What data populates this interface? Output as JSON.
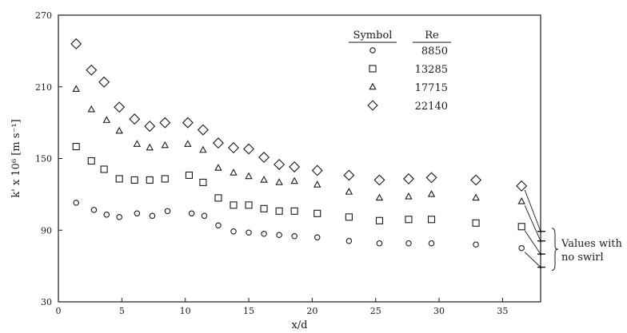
{
  "chart_data": {
    "type": "scatter",
    "title": "",
    "xlabel": "x/d",
    "ylabel": "k' x 10⁶ [m s⁻¹]",
    "xlim": [
      0,
      38
    ],
    "ylim": [
      30,
      270
    ],
    "xticks": [
      0,
      5,
      10,
      15,
      20,
      25,
      30,
      35
    ],
    "yticks": [
      30,
      90,
      150,
      210,
      270
    ],
    "grid": false,
    "legend": {
      "placement": "top-right",
      "symbol_header": "Symbol",
      "value_header": "Re"
    },
    "series": [
      {
        "name": "8850",
        "marker": "circle",
        "points": [
          [
            1.4,
            113
          ],
          [
            2.8,
            107
          ],
          [
            3.8,
            103
          ],
          [
            4.8,
            101
          ],
          [
            6.2,
            104
          ],
          [
            7.4,
            102
          ],
          [
            8.6,
            106
          ],
          [
            10.5,
            104
          ],
          [
            11.5,
            102
          ],
          [
            12.6,
            94
          ],
          [
            13.8,
            89
          ],
          [
            15.0,
            88
          ],
          [
            16.2,
            87
          ],
          [
            17.4,
            86
          ],
          [
            18.6,
            85
          ],
          [
            20.4,
            84
          ],
          [
            22.9,
            81
          ],
          [
            25.3,
            79
          ],
          [
            27.6,
            79
          ],
          [
            29.4,
            79
          ],
          [
            32.9,
            78
          ],
          [
            36.5,
            75
          ]
        ]
      },
      {
        "name": "13285",
        "marker": "square",
        "points": [
          [
            1.4,
            160
          ],
          [
            2.6,
            148
          ],
          [
            3.6,
            141
          ],
          [
            4.8,
            133
          ],
          [
            6.0,
            132
          ],
          [
            7.2,
            132
          ],
          [
            8.4,
            133
          ],
          [
            10.3,
            136
          ],
          [
            11.4,
            130
          ],
          [
            12.6,
            117
          ],
          [
            13.8,
            111
          ],
          [
            15.0,
            111
          ],
          [
            16.2,
            108
          ],
          [
            17.4,
            106
          ],
          [
            18.6,
            106
          ],
          [
            20.4,
            104
          ],
          [
            22.9,
            101
          ],
          [
            25.3,
            98
          ],
          [
            27.6,
            99
          ],
          [
            29.4,
            99
          ],
          [
            32.9,
            96
          ],
          [
            36.5,
            93
          ]
        ]
      },
      {
        "name": "17715",
        "marker": "triangle",
        "points": [
          [
            1.4,
            208
          ],
          [
            2.6,
            191
          ],
          [
            3.8,
            182
          ],
          [
            4.8,
            173
          ],
          [
            6.2,
            162
          ],
          [
            7.2,
            159
          ],
          [
            8.4,
            161
          ],
          [
            10.2,
            162
          ],
          [
            11.4,
            157
          ],
          [
            12.6,
            142
          ],
          [
            13.8,
            138
          ],
          [
            15.0,
            135
          ],
          [
            16.2,
            132
          ],
          [
            17.4,
            130
          ],
          [
            18.6,
            131
          ],
          [
            20.4,
            128
          ],
          [
            22.9,
            122
          ],
          [
            25.3,
            117
          ],
          [
            27.6,
            118
          ],
          [
            29.4,
            120
          ],
          [
            32.9,
            117
          ],
          [
            36.5,
            114
          ]
        ]
      },
      {
        "name": "22140",
        "marker": "diamond",
        "points": [
          [
            1.4,
            246
          ],
          [
            2.6,
            224
          ],
          [
            3.6,
            214
          ],
          [
            4.8,
            193
          ],
          [
            6.0,
            183
          ],
          [
            7.2,
            177
          ],
          [
            8.4,
            180
          ],
          [
            10.2,
            180
          ],
          [
            11.4,
            174
          ],
          [
            12.6,
            163
          ],
          [
            13.8,
            159
          ],
          [
            15.0,
            158
          ],
          [
            16.2,
            151
          ],
          [
            17.4,
            145
          ],
          [
            18.6,
            143
          ],
          [
            20.4,
            140
          ],
          [
            22.9,
            136
          ],
          [
            25.3,
            132
          ],
          [
            27.6,
            133
          ],
          [
            29.4,
            134
          ],
          [
            32.9,
            132
          ],
          [
            36.5,
            127
          ]
        ]
      }
    ],
    "no_swirl": {
      "note_line1": "Values with",
      "note_line2": "no swirl",
      "values": [
        89,
        81,
        70,
        59
      ]
    }
  }
}
